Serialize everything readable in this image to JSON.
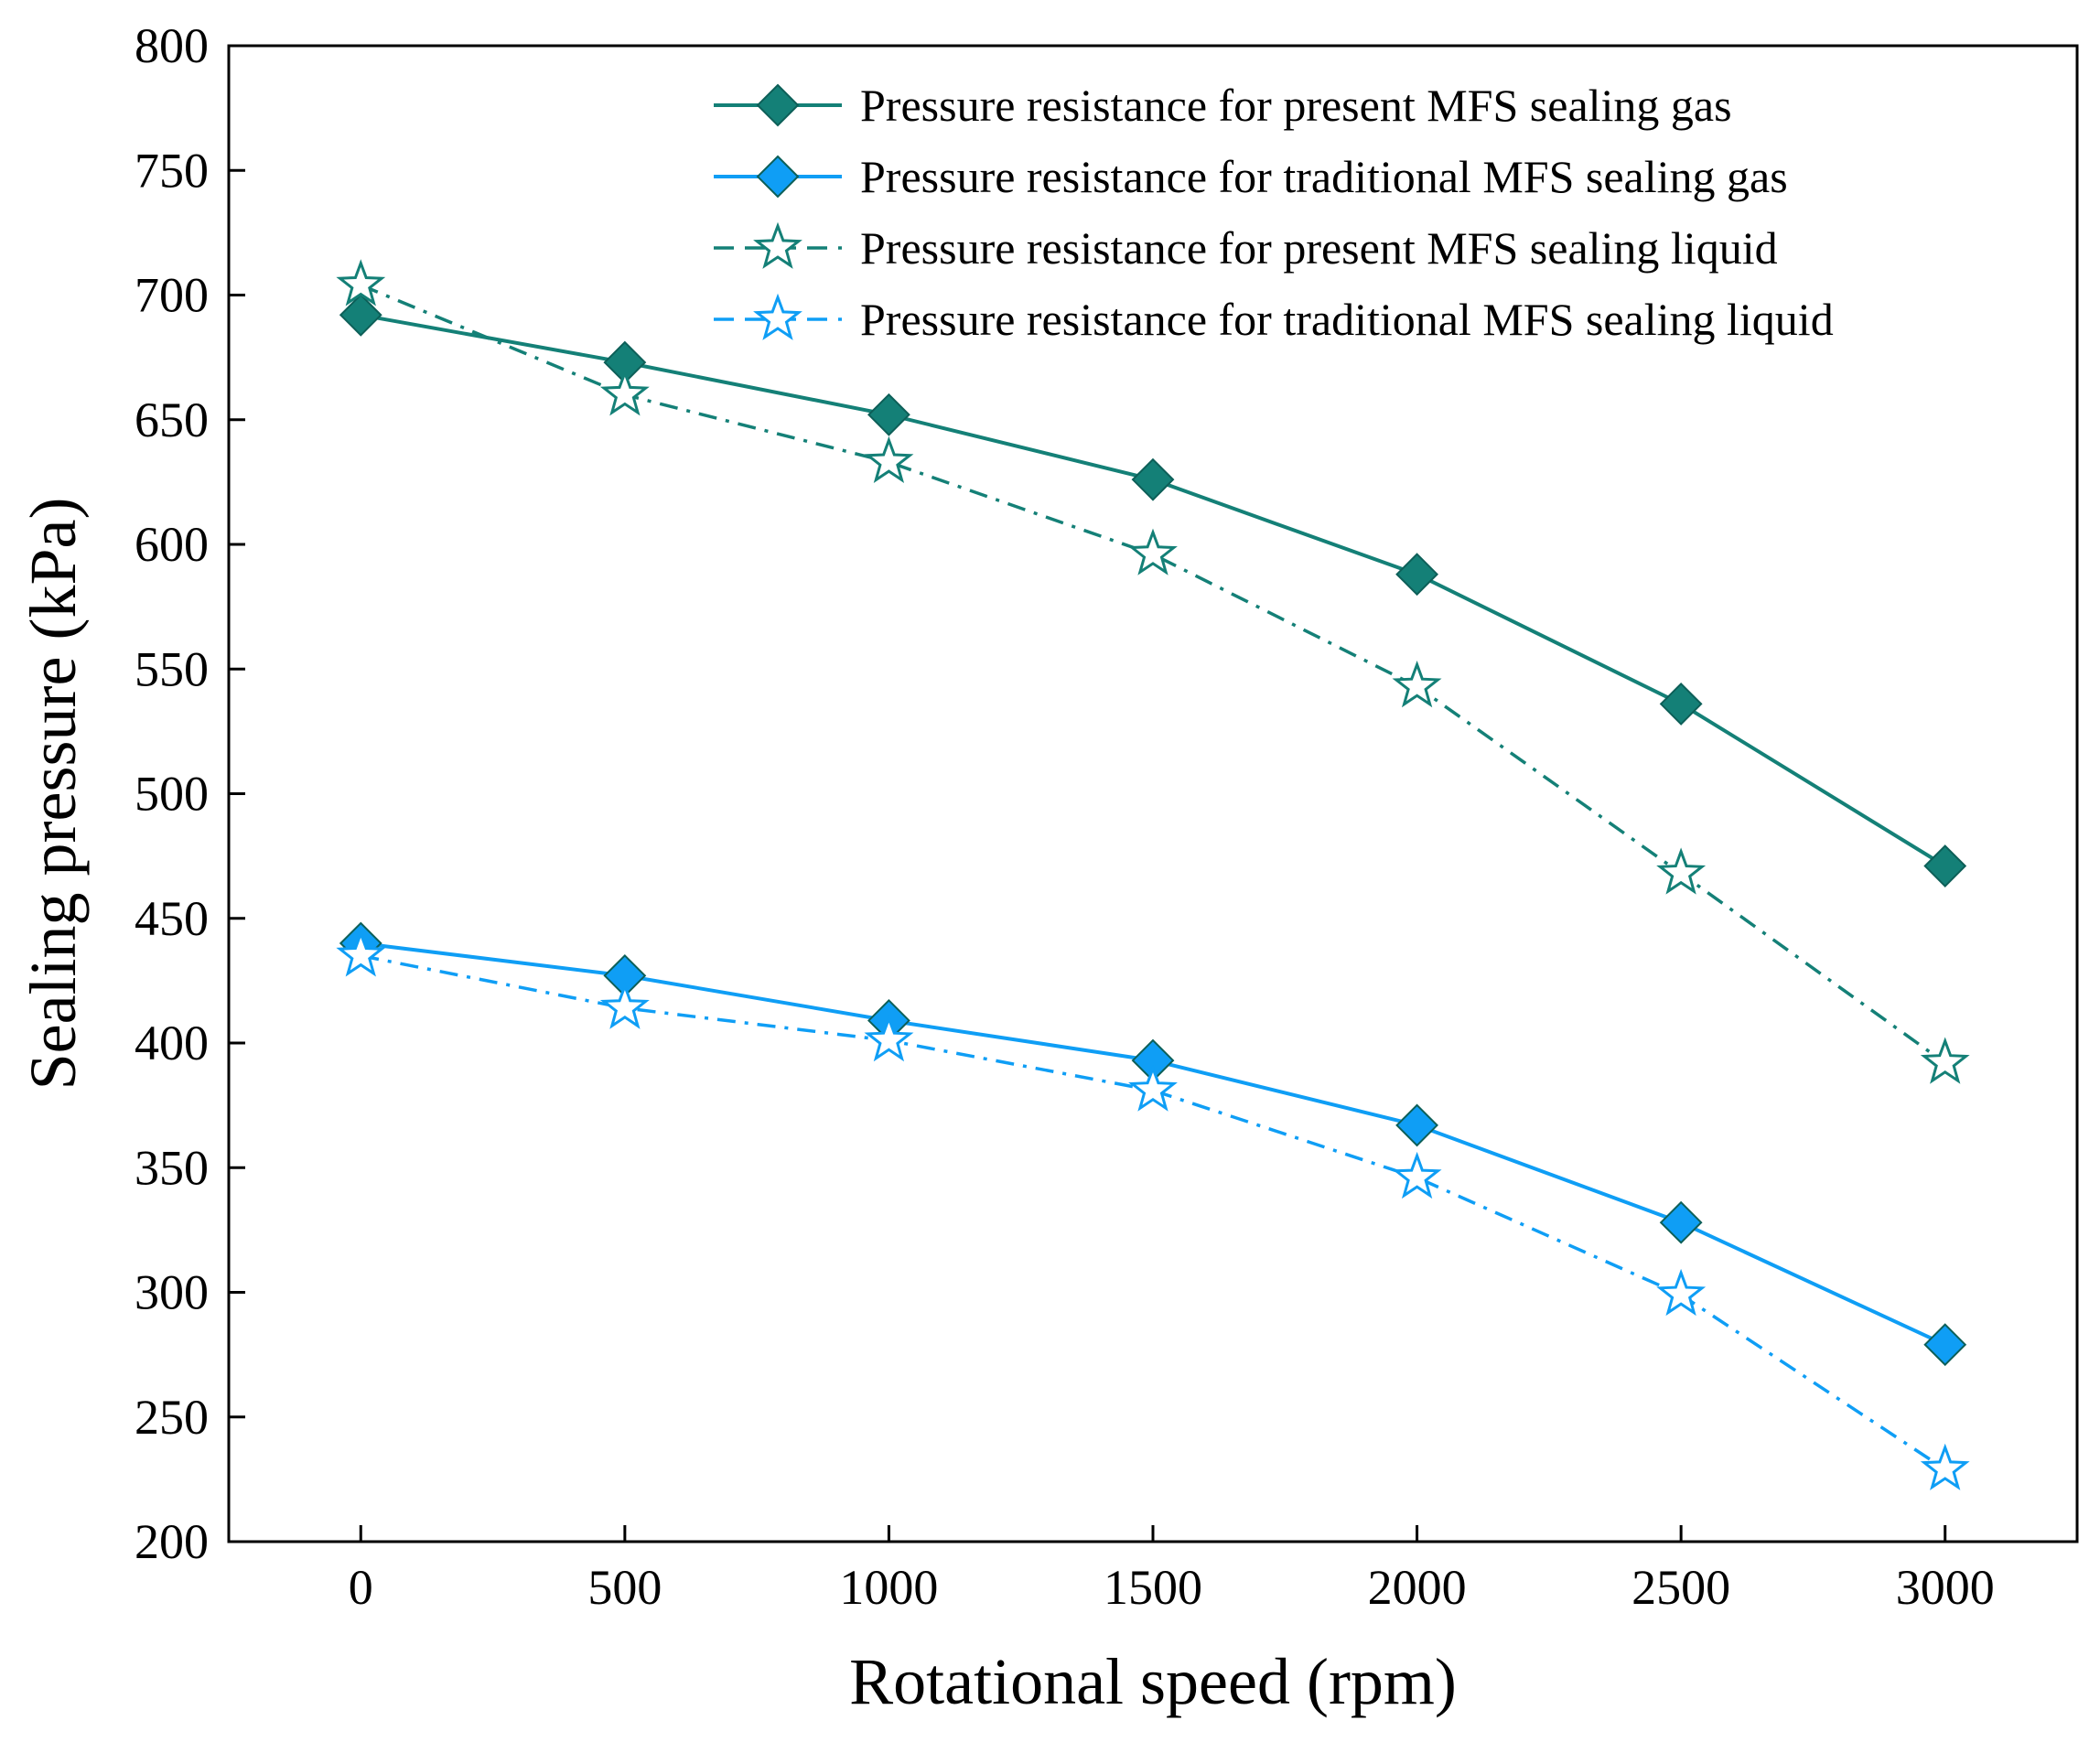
{
  "chart_data": {
    "type": "line",
    "xlabel": "Rotational speed (rpm)",
    "ylabel": "Sealing pressure (kPa)",
    "x": [
      0,
      500,
      1000,
      1500,
      2000,
      2500,
      3000
    ],
    "xlim": [
      -250,
      3250
    ],
    "ylim": [
      200,
      800
    ],
    "xticks": [
      "0",
      "500",
      "1000",
      "1500",
      "2000",
      "2500",
      "3000"
    ],
    "yticks": [
      "200",
      "250",
      "300",
      "350",
      "400",
      "450",
      "500",
      "550",
      "600",
      "650",
      "700",
      "750",
      "800"
    ],
    "grid": false,
    "legend_position": "top-right",
    "series": [
      {
        "name": "Pressure resistance for present MFS sealing gas",
        "values": [
          692,
          673,
          652,
          626,
          588,
          536,
          471
        ],
        "color": "#148077",
        "line_style": "solid",
        "marker": "diamond-filled"
      },
      {
        "name": "Pressure resistance for traditional MFS sealing gas",
        "values": [
          440,
          427,
          409,
          393,
          367,
          328,
          279
        ],
        "color": "#0f9ef5",
        "line_style": "solid",
        "marker": "diamond-filled"
      },
      {
        "name": "Pressure resistance for present MFS sealing liquid",
        "values": [
          704,
          660,
          633,
          596,
          543,
          468,
          392
        ],
        "color": "#148077",
        "line_style": "dash-dot",
        "marker": "star-open"
      },
      {
        "name": "Pressure resistance for traditional MFS sealing liquid",
        "values": [
          435,
          414,
          401,
          381,
          346,
          299,
          229
        ],
        "color": "#0f9ef5",
        "line_style": "dash-dot",
        "marker": "star-open"
      }
    ]
  }
}
